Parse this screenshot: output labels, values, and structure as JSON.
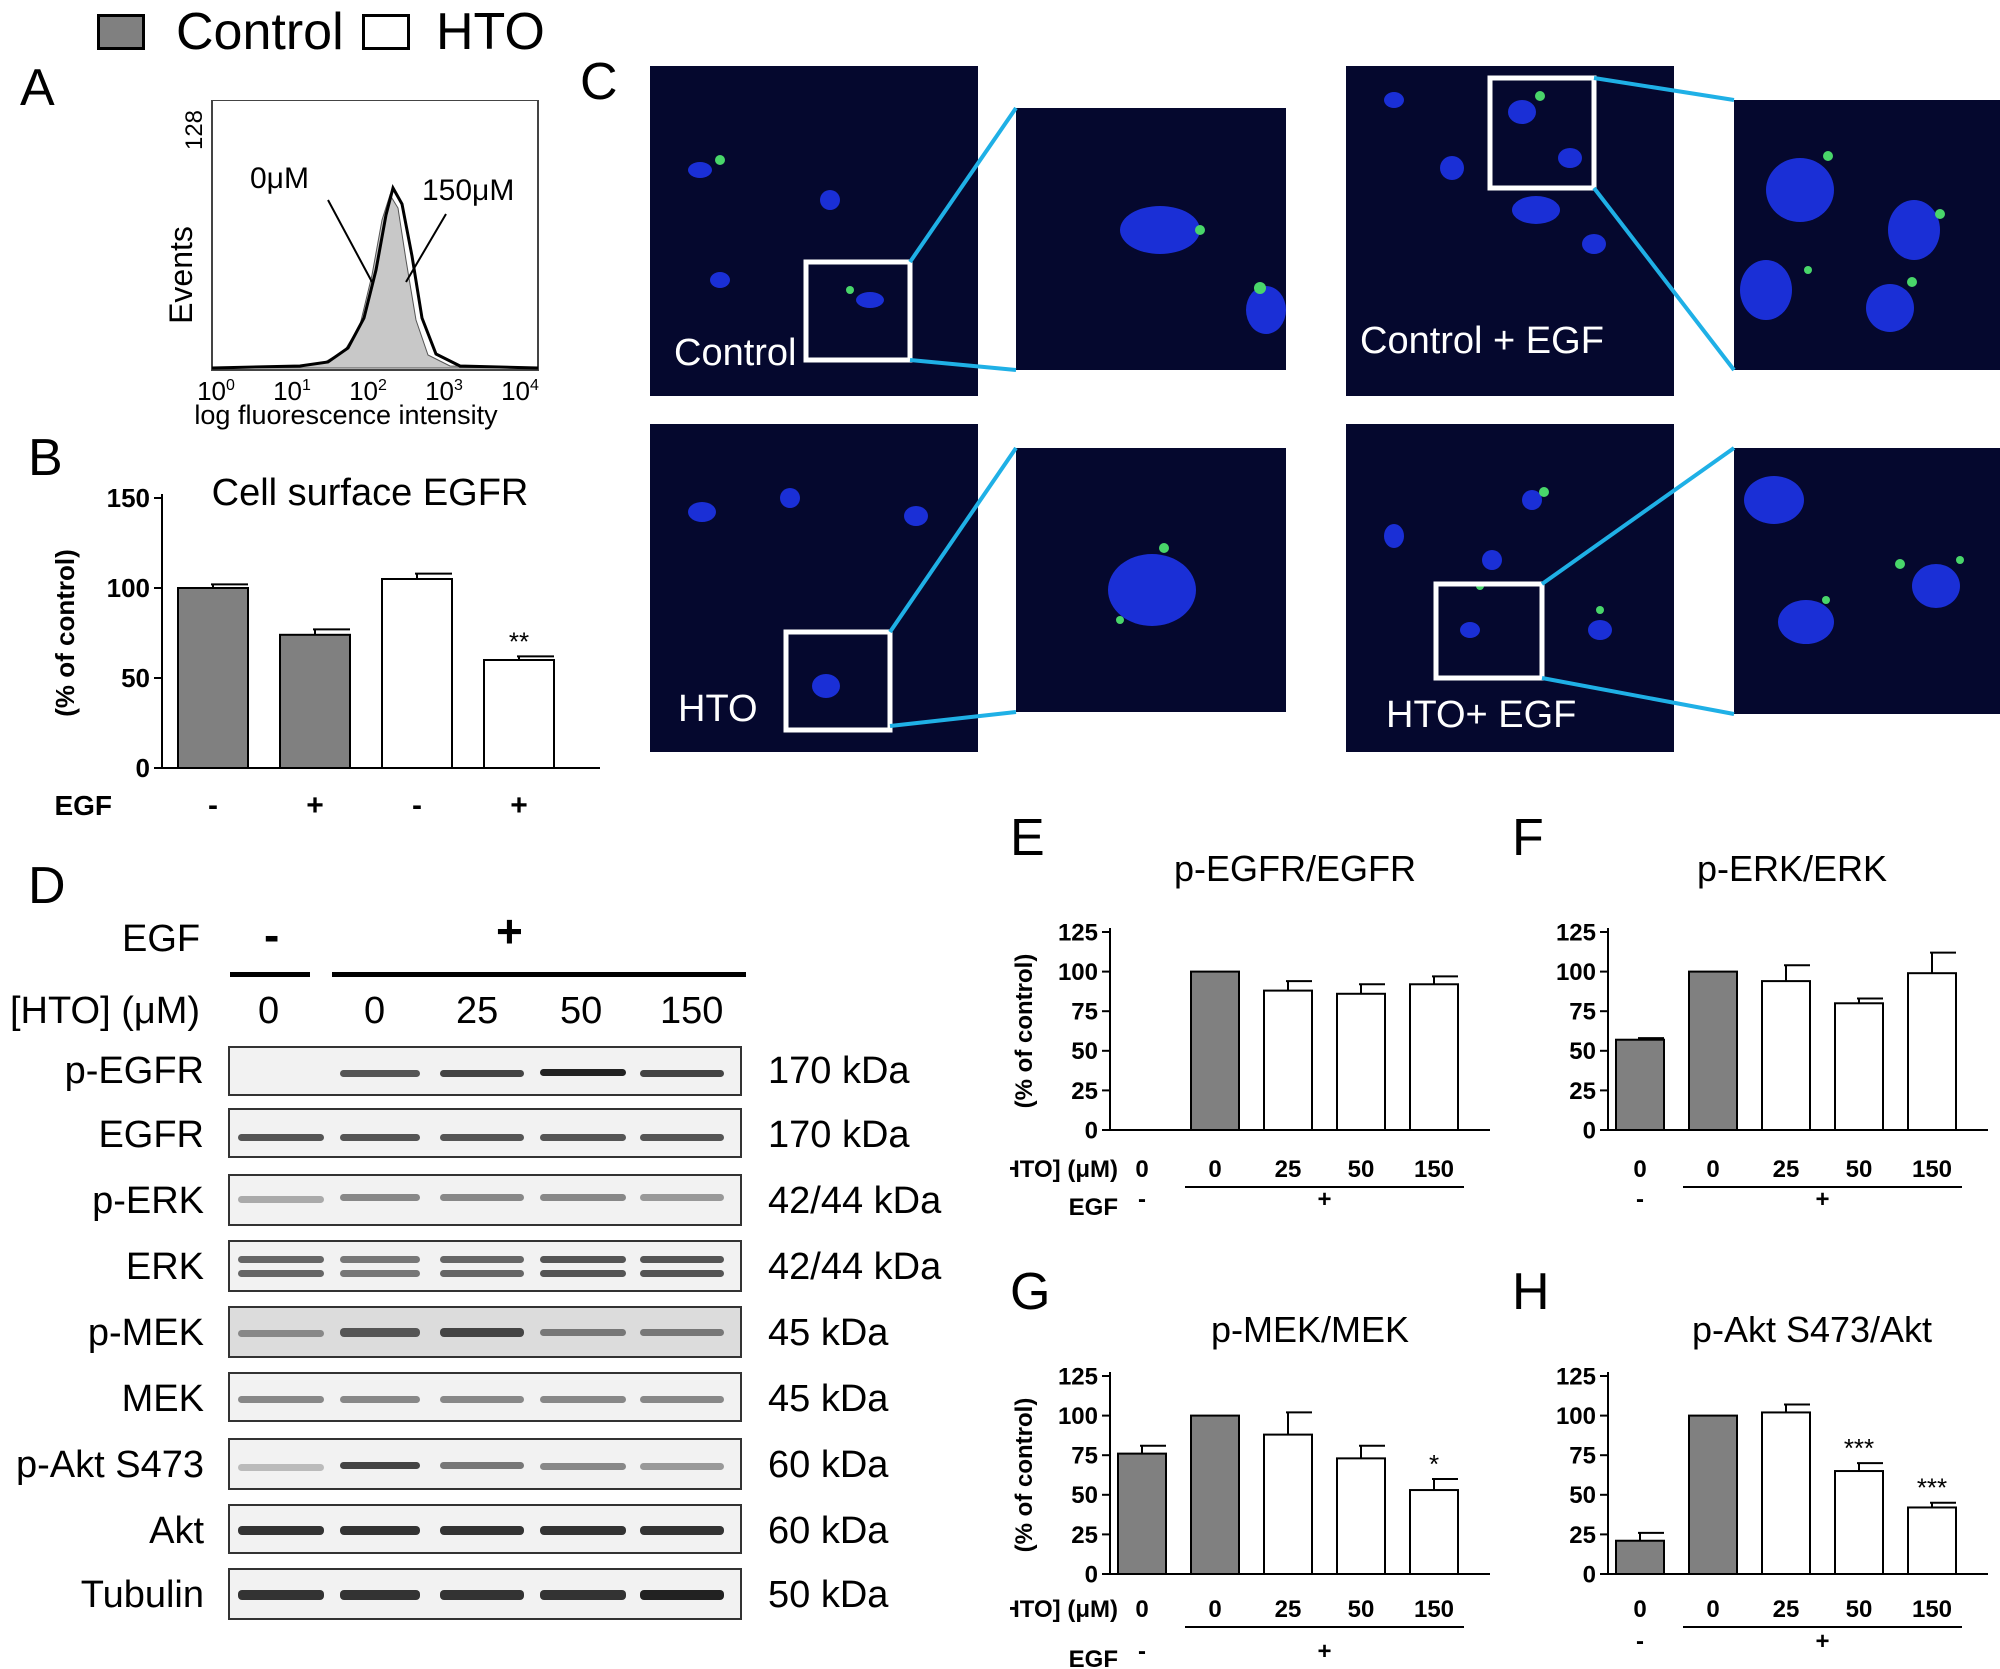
{
  "legend": {
    "items": [
      {
        "label": "Control",
        "fill": "#808080"
      },
      {
        "label": "HTO",
        "fill": "#ffffff"
      }
    ]
  },
  "panels": {
    "A": "A",
    "B": "B",
    "C": "C",
    "D": "D",
    "E": "E",
    "F": "F",
    "G": "G",
    "H": "H"
  },
  "panel_A": {
    "ylabel": "Events",
    "ymax_label": "128",
    "xlabel": "log fluorescence intensity",
    "x_ticks": [
      "10",
      "10",
      "10",
      "10",
      "10"
    ],
    "x_tick_exponents": [
      "0",
      "1",
      "2",
      "3",
      "4"
    ],
    "annotations": [
      "0μM",
      "150μM"
    ]
  },
  "panel_C": {
    "captions": [
      "Control",
      "Control + EGF",
      "HTO",
      "HTO+ EGF"
    ]
  },
  "panel_D": {
    "egf_label": "EGF",
    "egf_minus": "-",
    "egf_plus": "+",
    "hto_label": "[HTO] (μM)",
    "hto_doses": [
      "0",
      "0",
      "25",
      "50",
      "150"
    ],
    "rows": [
      {
        "name": "p-EGFR",
        "kda": "170 kDa"
      },
      {
        "name": "EGFR",
        "kda": "170 kDa"
      },
      {
        "name": "p-ERK",
        "kda": "42/44 kDa"
      },
      {
        "name": "ERK",
        "kda": "42/44 kDa"
      },
      {
        "name": "p-MEK",
        "kda": "45 kDa"
      },
      {
        "name": "MEK",
        "kda": "45 kDa"
      },
      {
        "name": "p-Akt S473",
        "kda": "60 kDa"
      },
      {
        "name": "Akt",
        "kda": "60 kDa"
      },
      {
        "name": "Tubulin",
        "kda": "50 kDa"
      }
    ]
  },
  "colors": {
    "control": "#808080",
    "hto": "#ffffff",
    "connector": "#1fb0e6",
    "micro_bg": "#05082e"
  },
  "chart_data": [
    {
      "id": "B",
      "type": "bar",
      "title": "Cell surface EGFR",
      "ylabel": "(% of control)",
      "ylim": [
        0,
        150
      ],
      "yticks": [
        0,
        50,
        100,
        150
      ],
      "categories": [
        "-",
        "+",
        "-",
        "+"
      ],
      "values": [
        100,
        74,
        105,
        60
      ],
      "errors": [
        2,
        3,
        3,
        2
      ],
      "fills": [
        "control",
        "control",
        "hto",
        "hto"
      ],
      "annotations": [
        "",
        "",
        "",
        "**"
      ],
      "row_label": "EGF"
    },
    {
      "id": "E",
      "type": "bar",
      "title": "p-EGFR/EGFR",
      "ylabel": "(% of control)",
      "ylim": [
        0,
        125
      ],
      "yticks": [
        0,
        25,
        50,
        75,
        100,
        125
      ],
      "categories": [
        "0",
        "0",
        "25",
        "50",
        "150"
      ],
      "values": [
        0,
        100,
        88,
        86,
        92
      ],
      "errors": [
        0,
        0,
        6,
        6,
        5
      ],
      "fills": [
        "control",
        "control",
        "hto",
        "hto",
        "hto"
      ],
      "annotations": [
        "",
        "",
        "",
        "",
        ""
      ],
      "hto_label": "[HTO] (μM)",
      "egf_label": "EGF",
      "egf_values": [
        "-",
        "+"
      ]
    },
    {
      "id": "F",
      "type": "bar",
      "title": "p-ERK/ERK",
      "ylabel": "",
      "ylim": [
        0,
        125
      ],
      "yticks": [
        0,
        25,
        50,
        75,
        100,
        125
      ],
      "categories": [
        "0",
        "0",
        "25",
        "50",
        "150"
      ],
      "values": [
        57,
        100,
        94,
        80,
        99
      ],
      "errors": [
        1,
        0,
        10,
        3,
        13
      ],
      "fills": [
        "control",
        "control",
        "hto",
        "hto",
        "hto"
      ],
      "annotations": [
        "",
        "",
        "",
        "",
        ""
      ],
      "hto_label": "",
      "egf_label": "",
      "egf_values": [
        "-",
        "+"
      ]
    },
    {
      "id": "G",
      "type": "bar",
      "title": "p-MEK/MEK",
      "ylabel": "(% of control)",
      "ylim": [
        0,
        125
      ],
      "yticks": [
        0,
        25,
        50,
        75,
        100,
        125
      ],
      "categories": [
        "0",
        "0",
        "25",
        "50",
        "150"
      ],
      "values": [
        76,
        100,
        88,
        73,
        53
      ],
      "errors": [
        5,
        0,
        14,
        8,
        7
      ],
      "fills": [
        "control",
        "control",
        "hto",
        "hto",
        "hto"
      ],
      "annotations": [
        "",
        "",
        "",
        "",
        "*"
      ],
      "hto_label": "[HTO] (μM)",
      "egf_label": "EGF",
      "egf_values": [
        "-",
        "+"
      ]
    },
    {
      "id": "H",
      "type": "bar",
      "title": "p-Akt S473/Akt",
      "ylabel": "",
      "ylim": [
        0,
        125
      ],
      "yticks": [
        0,
        25,
        50,
        75,
        100,
        125
      ],
      "categories": [
        "0",
        "0",
        "25",
        "50",
        "150"
      ],
      "values": [
        21,
        100,
        102,
        65,
        42
      ],
      "errors": [
        5,
        0,
        5,
        5,
        3
      ],
      "fills": [
        "control",
        "control",
        "hto",
        "hto",
        "hto"
      ],
      "annotations": [
        "",
        "",
        "",
        "***",
        "***"
      ],
      "hto_label": "",
      "egf_label": "",
      "egf_values": [
        "-",
        "+"
      ]
    }
  ]
}
